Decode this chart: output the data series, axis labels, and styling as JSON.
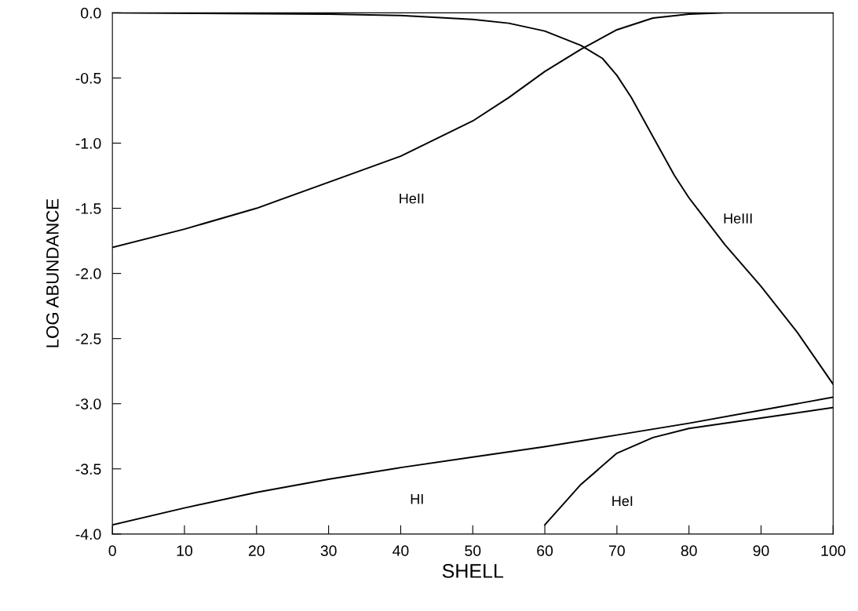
{
  "chart_data": {
    "type": "line",
    "xlabel": "SHELL",
    "ylabel": "LOG ABUNDANCE",
    "xlim": [
      0,
      100
    ],
    "ylim": [
      -4.0,
      0.0
    ],
    "xticks": [
      0,
      10,
      20,
      30,
      40,
      50,
      60,
      70,
      80,
      90,
      100
    ],
    "yticks": [
      {
        "value": -4,
        "label": "-4.0"
      },
      {
        "value": -3.5,
        "label": "-3.5"
      },
      {
        "value": -3,
        "label": "-3.0"
      },
      {
        "value": -2.5,
        "label": "-2.5"
      },
      {
        "value": -2,
        "label": "-2.0"
      },
      {
        "value": -1.5,
        "label": "-1.5"
      },
      {
        "value": -1,
        "label": "-1.0"
      },
      {
        "value": -0.5,
        "label": "-0.5"
      },
      {
        "value": 0,
        "label": "0.0"
      }
    ],
    "grid": false,
    "marker": "none",
    "line_style": "solid",
    "series": [
      {
        "name": "HeII",
        "color": "#000000",
        "x": [
          0,
          10,
          20,
          30,
          40,
          50,
          55,
          60,
          65,
          70,
          75,
          80,
          85,
          90,
          100
        ],
        "values": [
          -1.8,
          -1.66,
          -1.5,
          -1.3,
          -1.1,
          -0.83,
          -0.65,
          -0.45,
          -0.28,
          -0.13,
          -0.04,
          -0.01,
          0,
          0,
          0
        ]
      },
      {
        "name": "HeIII",
        "color": "#000000",
        "x": [
          0,
          30,
          40,
          50,
          55,
          60,
          65,
          68,
          70,
          72,
          75,
          78,
          80,
          85,
          90,
          95,
          100
        ],
        "values": [
          0,
          -0.01,
          -0.02,
          -0.05,
          -0.08,
          -0.14,
          -0.25,
          -0.35,
          -0.48,
          -0.65,
          -0.95,
          -1.25,
          -1.42,
          -1.78,
          -2.1,
          -2.45,
          -2.85
        ]
      },
      {
        "name": "HI",
        "color": "#000000",
        "x": [
          0,
          10,
          20,
          30,
          40,
          50,
          60,
          70,
          80,
          90,
          100
        ],
        "values": [
          -3.93,
          -3.8,
          -3.68,
          -3.58,
          -3.49,
          -3.41,
          -3.33,
          -3.24,
          -3.15,
          -3.05,
          -2.95
        ]
      },
      {
        "name": "HeI",
        "color": "#000000",
        "x": [
          60,
          65,
          70,
          75,
          80,
          90,
          100
        ],
        "values": [
          -3.93,
          -3.62,
          -3.38,
          -3.26,
          -3.19,
          -3.11,
          -3.03
        ]
      }
    ]
  }
}
